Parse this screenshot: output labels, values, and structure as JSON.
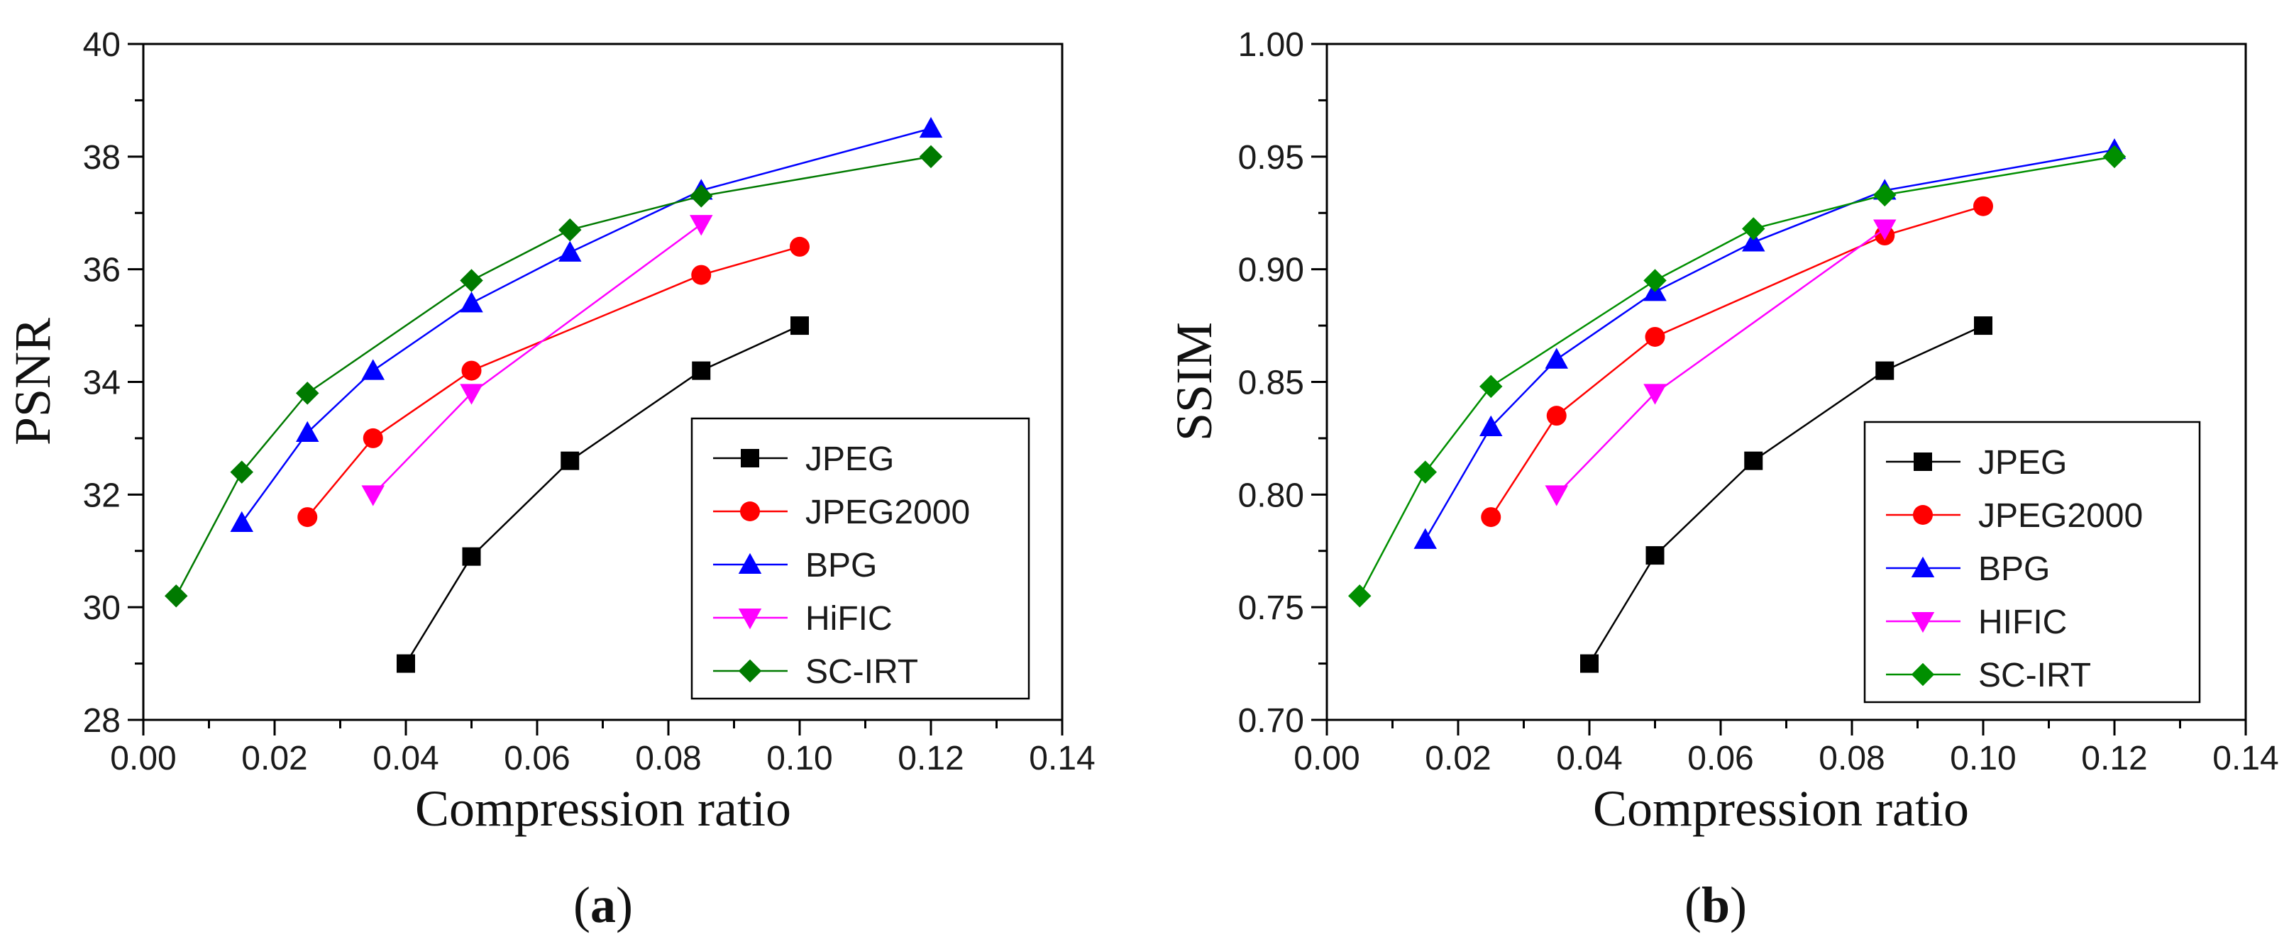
{
  "chart_data": [
    {
      "type": "line",
      "id": "a",
      "panel_label_open": "(",
      "panel_label_letter": "a",
      "panel_label_close": ")",
      "xlabel": "Compression ratio",
      "ylabel": "PSNR",
      "xlim": [
        0.0,
        0.14
      ],
      "ylim": [
        28,
        40
      ],
      "xticks": [
        0.0,
        0.02,
        0.04,
        0.06,
        0.08,
        0.1,
        0.12,
        0.14
      ],
      "xtick_labels": [
        "0.00",
        "0.02",
        "0.04",
        "0.06",
        "0.08",
        "0.10",
        "0.12",
        "0.14"
      ],
      "yticks": [
        28,
        30,
        32,
        34,
        36,
        38,
        40
      ],
      "ytick_labels": [
        "28",
        "30",
        "32",
        "34",
        "36",
        "38",
        "40"
      ],
      "legend_position": "bottom-right",
      "series": [
        {
          "name": "JPEG",
          "color": "#000000",
          "marker": "square",
          "x": [
            0.04,
            0.05,
            0.065,
            0.085,
            0.1
          ],
          "y": [
            29.0,
            30.9,
            32.6,
            34.2,
            35.0
          ]
        },
        {
          "name": "JPEG2000",
          "color": "#ff0000",
          "marker": "circle",
          "x": [
            0.025,
            0.035,
            0.05,
            0.085,
            0.1
          ],
          "y": [
            31.6,
            33.0,
            34.2,
            35.9,
            36.4
          ]
        },
        {
          "name": "BPG",
          "color": "#0000ff",
          "marker": "triangle-up",
          "x": [
            0.015,
            0.025,
            0.035,
            0.05,
            0.065,
            0.085,
            0.12
          ],
          "y": [
            31.5,
            33.1,
            34.2,
            35.4,
            36.3,
            37.4,
            38.5
          ]
        },
        {
          "name": "HiFIC",
          "color": "#ff00ff",
          "marker": "triangle-down",
          "x": [
            0.035,
            0.05,
            0.085
          ],
          "y": [
            32.0,
            33.8,
            36.8
          ]
        },
        {
          "name": "SC-IRT",
          "color": "#007a00",
          "marker": "diamond",
          "x": [
            0.005,
            0.015,
            0.025,
            0.05,
            0.065,
            0.085,
            0.12
          ],
          "y": [
            30.2,
            32.4,
            33.8,
            35.8,
            36.7,
            37.3,
            38.0
          ]
        }
      ]
    },
    {
      "type": "line",
      "id": "b",
      "panel_label_open": "(",
      "panel_label_letter": "b",
      "panel_label_close": ")",
      "xlabel": "Compression ratio",
      "ylabel": "SSIM",
      "xlim": [
        0.0,
        0.14
      ],
      "ylim": [
        0.7,
        1.0
      ],
      "xticks": [
        0.0,
        0.02,
        0.04,
        0.06,
        0.08,
        0.1,
        0.12,
        0.14
      ],
      "xtick_labels": [
        "0.00",
        "0.02",
        "0.04",
        "0.06",
        "0.08",
        "0.10",
        "0.12",
        "0.14"
      ],
      "yticks": [
        0.7,
        0.75,
        0.8,
        0.85,
        0.9,
        0.95,
        1.0
      ],
      "ytick_labels": [
        "0.70",
        "0.75",
        "0.80",
        "0.85",
        "0.90",
        "0.95",
        "1.00"
      ],
      "legend_position": "bottom-right",
      "series": [
        {
          "name": "JPEG",
          "color": "#000000",
          "marker": "square",
          "x": [
            0.04,
            0.05,
            0.065,
            0.085,
            0.1
          ],
          "y": [
            0.725,
            0.773,
            0.815,
            0.855,
            0.875
          ]
        },
        {
          "name": "JPEG2000",
          "color": "#ff0000",
          "marker": "circle",
          "x": [
            0.025,
            0.035,
            0.05,
            0.085,
            0.1
          ],
          "y": [
            0.79,
            0.835,
            0.87,
            0.915,
            0.928
          ]
        },
        {
          "name": "BPG",
          "color": "#0000ff",
          "marker": "triangle-up",
          "x": [
            0.015,
            0.025,
            0.035,
            0.05,
            0.065,
            0.085,
            0.12
          ],
          "y": [
            0.78,
            0.83,
            0.86,
            0.89,
            0.912,
            0.935,
            0.953
          ]
        },
        {
          "name": "HIFIC",
          "color": "#ff00ff",
          "marker": "triangle-down",
          "x": [
            0.035,
            0.05,
            0.085
          ],
          "y": [
            0.8,
            0.845,
            0.918
          ]
        },
        {
          "name": "SC-IRT",
          "color": "#008f00",
          "marker": "diamond",
          "x": [
            0.005,
            0.015,
            0.025,
            0.05,
            0.065,
            0.085,
            0.12
          ],
          "y": [
            0.755,
            0.81,
            0.848,
            0.895,
            0.918,
            0.933,
            0.95
          ]
        }
      ]
    }
  ]
}
